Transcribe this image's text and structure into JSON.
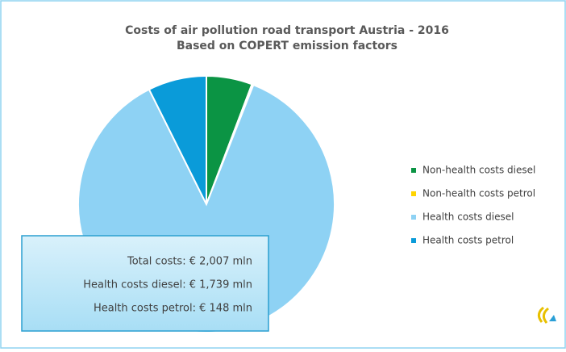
{
  "chart_data": {
    "type": "pie",
    "title": "Costs of air pollution road transport Austria - 2016",
    "subtitle": "Based on COPERT emission factors",
    "series": [
      {
        "name": "Non-health costs diesel",
        "color": "#0b9444",
        "values": [
          116
        ]
      },
      {
        "name": "Non-health costs petrol",
        "color": "#ffd400",
        "values": [
          4
        ]
      },
      {
        "name": "Health costs diesel",
        "color": "#8ed2f4",
        "values": [
          1739
        ]
      },
      {
        "name": "Health costs petrol",
        "color": "#0a9bd9",
        "values": [
          148
        ]
      }
    ],
    "annotations": [
      "Total costs: € 2,007 mln",
      "Health costs diesel: € 1,739 mln",
      "Health costs petrol: € 148 mln"
    ],
    "legend": "right"
  }
}
